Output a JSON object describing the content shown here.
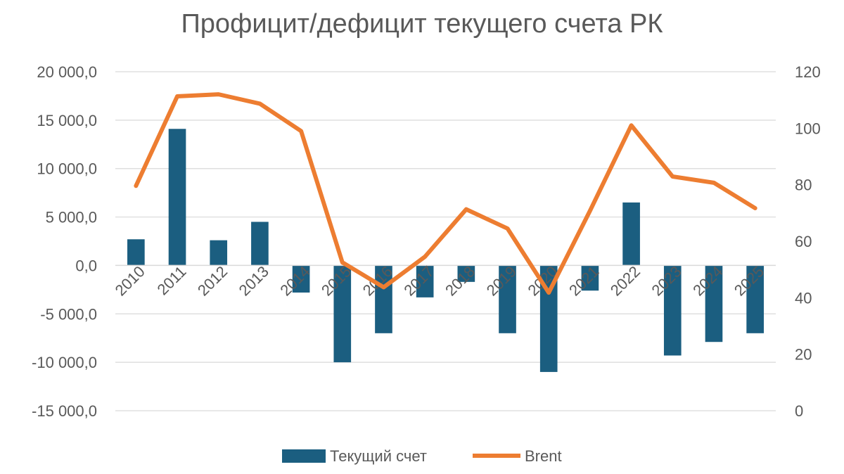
{
  "chart_data": {
    "type": "bar+line",
    "title": "Профицит/дефицит текущего счета РК",
    "categories": [
      "2010",
      "2011",
      "2012",
      "2013",
      "2014",
      "2015",
      "2016",
      "2017",
      "2018",
      "2019",
      "2020",
      "2021",
      "2022",
      "2023",
      "2024",
      "2025"
    ],
    "series": [
      {
        "name": "Текущий счет",
        "type": "bar",
        "axis": "left",
        "color": "#1B5E80",
        "values": [
          2700,
          14100,
          2600,
          4500,
          -2800,
          -10000,
          -7000,
          -3300,
          -1700,
          -7000,
          -11000,
          -2600,
          6500,
          -9300,
          -7900,
          -7000
        ]
      },
      {
        "name": "Brent",
        "type": "line",
        "axis": "right",
        "color": "#ED7D31",
        "values": [
          79.6,
          111.3,
          112.0,
          108.7,
          99.0,
          52.5,
          43.7,
          54.5,
          71.3,
          64.5,
          41.8,
          70.8,
          101.0,
          82.9,
          80.7,
          71.7
        ]
      }
    ],
    "left_axis": {
      "min": -15000,
      "max": 20000,
      "step": 5000,
      "tick_labels": [
        "-15 000,0",
        "-10 000,0",
        "-5 000,0",
        "0,0",
        "5 000,0",
        "10 000,0",
        "15 000,0",
        "20 000,0"
      ]
    },
    "right_axis": {
      "min": 0,
      "max": 120,
      "step": 20,
      "tick_labels": [
        "0",
        "20",
        "40",
        "60",
        "80",
        "100",
        "120"
      ]
    },
    "grid": true,
    "legend": "bottom"
  }
}
